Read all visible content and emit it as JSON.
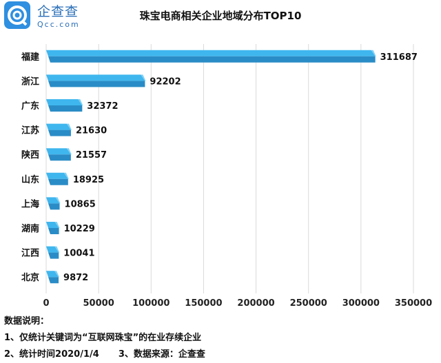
{
  "logo": {
    "name_cn": "企查查",
    "name_en": "Qcc.com"
  },
  "chart_data": {
    "type": "bar",
    "orientation": "horizontal",
    "title": "珠宝电商相关企业地域分布TOP10",
    "categories": [
      "福建",
      "浙江",
      "广东",
      "江苏",
      "陕西",
      "山东",
      "上海",
      "湖南",
      "江西",
      "北京"
    ],
    "values": [
      311687,
      92202,
      32372,
      21630,
      21557,
      18925,
      10865,
      10229,
      10041,
      9872
    ],
    "xlim": [
      0,
      350000
    ],
    "xticks": [
      "0",
      "50000",
      "100000",
      "150000",
      "200000",
      "250000",
      "300000",
      "350000"
    ],
    "grid": "vertical",
    "data_labels": true,
    "colors": {
      "bar_top": "#3fb6ee",
      "bar_bottom": "#2a8cc6",
      "bar_end": "#7fd0f5",
      "grid": "#d9d9d9"
    }
  },
  "notes": {
    "heading": "数据说明：",
    "line1": "1、仅统计关键词为“互联网珠宝”的在业存续企业",
    "line2a": "2、统计时间2020/1/4",
    "line2b": "3、数据来源：企查查"
  }
}
